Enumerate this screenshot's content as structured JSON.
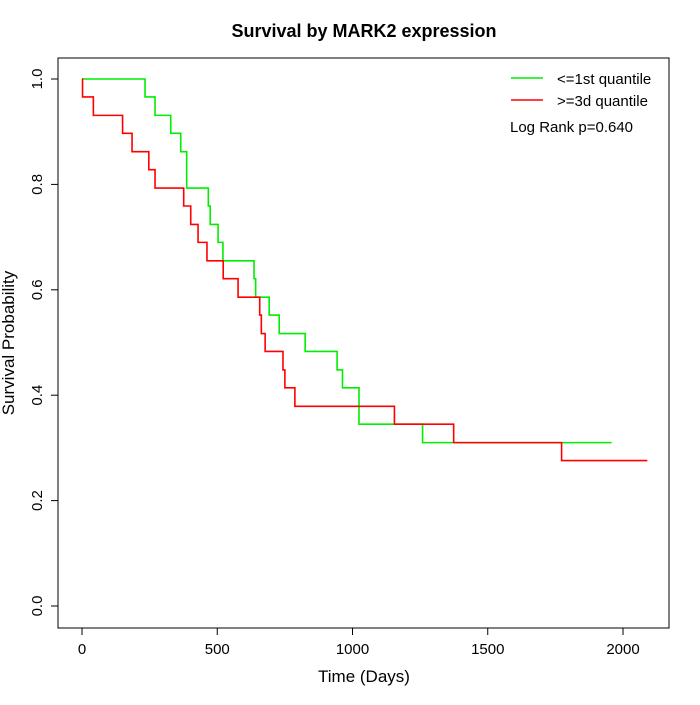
{
  "chart_data": {
    "type": "line",
    "step": true,
    "title": "Survival by MARK2 expression",
    "xlabel": "Time (Days)",
    "ylabel": "Survival Probability",
    "xlim": [
      0,
      2100
    ],
    "ylim": [
      0,
      1
    ],
    "xticks": [
      0,
      500,
      1000,
      1500,
      2000
    ],
    "yticks": [
      "0.0",
      "0.2",
      "0.4",
      "0.6",
      "0.8",
      "1.0"
    ],
    "grid": false,
    "legend_position": "top-right",
    "annotation": "Log Rank p=0.640",
    "series": [
      {
        "name": "<=1st quantile",
        "color": "#00ee00",
        "x": [
          0,
          233,
          270,
          328,
          365,
          387,
          467,
          474,
          503,
          521,
          636,
          642,
          692,
          729,
          825,
          943,
          963,
          1024,
          1259,
          1958
        ],
        "y": [
          1.0,
          0.966,
          0.931,
          0.897,
          0.862,
          0.793,
          0.759,
          0.724,
          0.69,
          0.655,
          0.621,
          0.586,
          0.552,
          0.517,
          0.483,
          0.448,
          0.414,
          0.345,
          0.31,
          0.31
        ]
      },
      {
        "name": ">=3d quantile",
        "color": "#ff0000",
        "x": [
          0,
          2,
          42,
          150,
          185,
          247,
          270,
          376,
          402,
          429,
          462,
          522,
          577,
          657,
          663,
          677,
          743,
          750,
          787,
          1155,
          1374,
          1773,
          2090
        ],
        "y": [
          1.0,
          0.966,
          0.931,
          0.897,
          0.862,
          0.828,
          0.793,
          0.759,
          0.724,
          0.69,
          0.655,
          0.621,
          0.586,
          0.552,
          0.517,
          0.483,
          0.448,
          0.414,
          0.379,
          0.345,
          0.31,
          0.276,
          0.276
        ]
      }
    ]
  }
}
